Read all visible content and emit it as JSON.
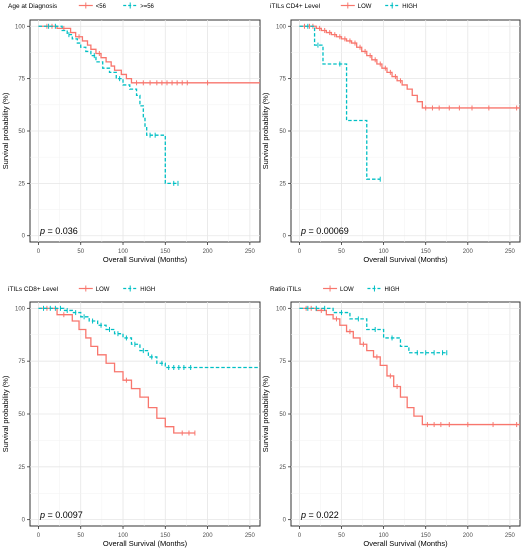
{
  "chart_data": [
    {
      "type": "line",
      "legend_title": "Age at Diagnosis",
      "legend_placement": "top",
      "xlabel": "Overall Survival (Months)",
      "ylabel": "Survival probability (%)",
      "xlim": [
        -10,
        262
      ],
      "ylim": [
        -3,
        103
      ],
      "xticks": [
        "0",
        "50",
        "100",
        "150",
        "200",
        "250"
      ],
      "yticks": [
        "0",
        "25",
        "50",
        "75",
        "100"
      ],
      "grid": true,
      "annotation": "p = 0.036",
      "p_value": "0.036",
      "series": [
        {
          "name": "<56",
          "color": "#F8766D",
          "style": "solid",
          "x": [
            0,
            22,
            38,
            44,
            52,
            58,
            62,
            68,
            74,
            80,
            86,
            90,
            98,
            104,
            110,
            114,
            120,
            262
          ],
          "y": [
            100,
            99,
            97,
            95,
            93,
            91,
            89,
            87,
            85,
            83,
            81,
            79,
            77,
            75,
            73,
            73,
            73,
            73
          ],
          "censor_x": [
            10,
            16,
            30,
            48,
            72,
            116,
            124,
            132,
            140,
            146,
            152,
            158,
            164,
            170,
            176,
            200
          ]
        },
        {
          "name": ">=56",
          "color": "#00BFC4",
          "style": "dashed",
          "x": [
            0,
            18,
            28,
            34,
            40,
            46,
            50,
            56,
            62,
            68,
            76,
            84,
            92,
            100,
            108,
            116,
            120,
            124,
            126,
            128,
            140,
            150,
            165
          ],
          "y": [
            100,
            100,
            98,
            96,
            94,
            92,
            90,
            88,
            86,
            83,
            80,
            78,
            75,
            72,
            70,
            67,
            62,
            56,
            52,
            48,
            48,
            25,
            25
          ],
          "censor_x": [
            12,
            20,
            36,
            66,
            96,
            132,
            138,
            160,
            165
          ]
        }
      ]
    },
    {
      "type": "line",
      "legend_title": "iTILs CD4+ Level",
      "legend_placement": "top",
      "xlabel": "Overall Survival (Months)",
      "ylabel": "Survival probability (%)",
      "xlim": [
        -10,
        262
      ],
      "ylim": [
        -3,
        103
      ],
      "xticks": [
        "0",
        "50",
        "100",
        "150",
        "200",
        "250"
      ],
      "yticks": [
        "0",
        "25",
        "50",
        "75",
        "100"
      ],
      "grid": true,
      "annotation": "p = 0.00069",
      "p_value": "0.00069",
      "series": [
        {
          "name": "LOW",
          "color": "#F8766D",
          "style": "solid",
          "x": [
            0,
            20,
            26,
            32,
            38,
            44,
            50,
            56,
            62,
            68,
            74,
            80,
            86,
            92,
            98,
            104,
            110,
            116,
            122,
            128,
            134,
            140,
            146,
            262
          ],
          "y": [
            100,
            99,
            98,
            97,
            96,
            95,
            94,
            93,
            92,
            90,
            88,
            86,
            84,
            82,
            80,
            78,
            76,
            74,
            72,
            70,
            67,
            64,
            61,
            61
          ],
          "censor_x": [
            6,
            12,
            16,
            24,
            30,
            36,
            42,
            48,
            54,
            60,
            66,
            72,
            78,
            84,
            90,
            96,
            102,
            108,
            114,
            120,
            150,
            158,
            166,
            178,
            190,
            205,
            225,
            258
          ]
        },
        {
          "name": "HIGH",
          "color": "#00BFC4",
          "style": "dashed",
          "x": [
            0,
            18,
            28,
            40,
            56,
            70,
            80,
            96
          ],
          "y": [
            100,
            91,
            82,
            82,
            55,
            55,
            27,
            27
          ],
          "censor_x": [
            10,
            22,
            48,
            96
          ]
        }
      ]
    },
    {
      "type": "line",
      "legend_title": "iTILs CD8+ Level",
      "legend_placement": "top",
      "xlabel": "Overall Survival (Months)",
      "ylabel": "Survival probability (%)",
      "xlim": [
        -10,
        262
      ],
      "ylim": [
        -3,
        103
      ],
      "xticks": [
        "0",
        "50",
        "100",
        "150",
        "200",
        "250"
      ],
      "yticks": [
        "0",
        "25",
        "50",
        "75",
        "100"
      ],
      "grid": true,
      "annotation": "p = 0.0097",
      "p_value": "0.0097",
      "series": [
        {
          "name": "LOW",
          "color": "#F8766D",
          "style": "solid",
          "x": [
            0,
            22,
            40,
            48,
            56,
            62,
            70,
            80,
            90,
            100,
            110,
            120,
            130,
            140,
            150,
            160,
            185
          ],
          "y": [
            100,
            97,
            94,
            90,
            86,
            82,
            78,
            74,
            70,
            66,
            62,
            58,
            53,
            48,
            44,
            41,
            41
          ],
          "censor_x": [
            10,
            30,
            104,
            170,
            178,
            185
          ]
        },
        {
          "name": "HIGH",
          "color": "#00BFC4",
          "style": "dashed",
          "x": [
            0,
            30,
            40,
            50,
            60,
            70,
            80,
            90,
            100,
            110,
            120,
            130,
            140,
            150,
            262
          ],
          "y": [
            100,
            99,
            98,
            96,
            94,
            92,
            90,
            88,
            86,
            83,
            80,
            77,
            74,
            72,
            72
          ],
          "censor_x": [
            6,
            14,
            20,
            26,
            34,
            44,
            54,
            64,
            74,
            84,
            94,
            104,
            114,
            124,
            134,
            146,
            154,
            160,
            166,
            172,
            180
          ]
        }
      ]
    },
    {
      "type": "line",
      "legend_title": "Ratio iTILs",
      "legend_placement": "top",
      "xlabel": "Overall Survival (Months)",
      "ylabel": "Survival probability (%)",
      "xlim": [
        -10,
        262
      ],
      "ylim": [
        -3,
        103
      ],
      "xticks": [
        "0",
        "50",
        "100",
        "150",
        "200",
        "250"
      ],
      "yticks": [
        "0",
        "25",
        "50",
        "75",
        "100"
      ],
      "grid": true,
      "annotation": "p = 0.022",
      "p_value": "0.022",
      "series": [
        {
          "name": "LOW",
          "color": "#F8766D",
          "style": "solid",
          "x": [
            0,
            20,
            32,
            40,
            48,
            56,
            64,
            72,
            80,
            88,
            96,
            104,
            112,
            120,
            128,
            136,
            146,
            262
          ],
          "y": [
            100,
            99,
            97,
            95,
            92,
            89,
            86,
            83,
            80,
            77,
            73,
            68,
            63,
            58,
            53,
            49,
            45,
            45
          ],
          "censor_x": [
            8,
            14,
            26,
            44,
            60,
            76,
            92,
            108,
            116,
            152,
            160,
            168,
            178,
            200,
            230,
            258
          ]
        },
        {
          "name": "HIGH",
          "color": "#00BFC4",
          "style": "dashed",
          "x": [
            0,
            40,
            60,
            80,
            100,
            120,
            130,
            175
          ],
          "y": [
            100,
            98,
            95,
            90,
            86,
            82,
            79,
            79
          ],
          "censor_x": [
            10,
            20,
            30,
            50,
            70,
            90,
            110,
            140,
            150,
            160,
            170,
            175
          ]
        }
      ]
    }
  ]
}
